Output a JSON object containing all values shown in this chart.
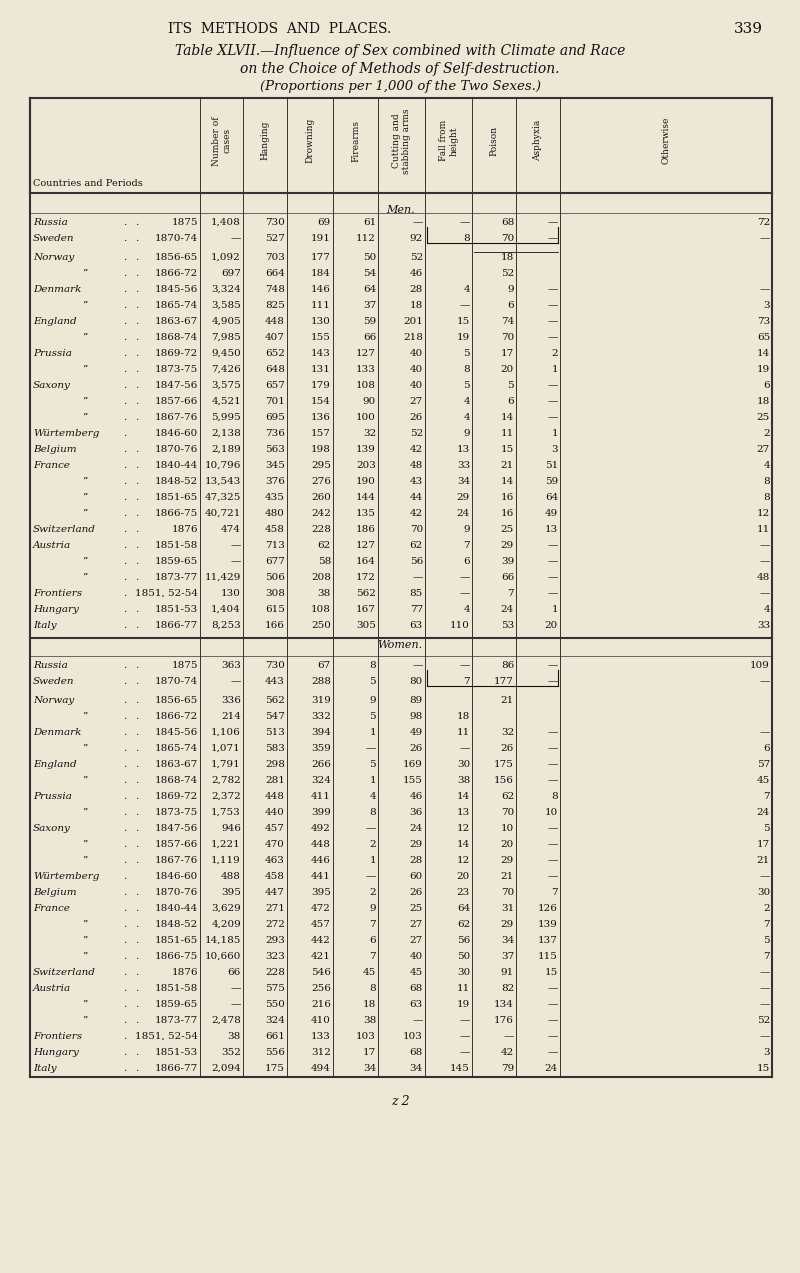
{
  "page_header": "ITS  METHODS  AND  PLACES.",
  "page_number": "339",
  "title_line1": "Table XLVII.—Influence of Sex combined with Climate and Race",
  "title_line2": "on the Choice of Methods of Self-destruction.",
  "title_line3": "(Proportions per 1,000 of the Two Sexes.)",
  "col_headers": [
    "Number of\ncases",
    "Hanging",
    "Drowning",
    "Firearms",
    "Cutting and\nstabbing arms",
    "Fall from\nheight",
    "Poison",
    "Asphyxia",
    "Otherwise"
  ],
  "men_label": "Men.",
  "women_label": "Women.",
  "men_rows": [
    [
      "Russia",
      ".",
      ".",
      "1875",
      "1,408",
      "730",
      "69",
      "61",
      "—",
      "—",
      "68",
      "—",
      "72"
    ],
    [
      "Sweden",
      ".",
      ".",
      "1870-74",
      "—",
      "527",
      "191",
      "112",
      "92",
      "8",
      "70",
      "—",
      "—"
    ],
    [
      "Norway",
      ".",
      ".",
      "1856-65",
      "1,092",
      "703",
      "177",
      "50",
      "52",
      "",
      "18",
      "",
      ""
    ],
    [
      "”",
      ".",
      ".",
      "1866-72",
      "697",
      "664",
      "184",
      "54",
      "46",
      "",
      "52",
      "",
      ""
    ],
    [
      "Denmark",
      ".",
      ".",
      "1845-56",
      "3,324",
      "748",
      "146",
      "64",
      "28",
      "4",
      "9",
      "—",
      "—"
    ],
    [
      "”",
      ".",
      ".",
      "1865-74",
      "3,585",
      "825",
      "111",
      "37",
      "18",
      "—",
      "6",
      "—",
      "3"
    ],
    [
      "England",
      ".",
      ".",
      "1863-67",
      "4,905",
      "448",
      "130",
      "59",
      "201",
      "15",
      "74",
      "—",
      "73"
    ],
    [
      "”",
      ".",
      ".",
      "1868-74",
      "7,985",
      "407",
      "155",
      "66",
      "218",
      "19",
      "70",
      "—",
      "65"
    ],
    [
      "Prussia",
      ".",
      ".",
      "1869-72",
      "9,450",
      "652",
      "143",
      "127",
      "40",
      "5",
      "17",
      "2",
      "14"
    ],
    [
      "”",
      ".",
      ".",
      "1873-75",
      "7,426",
      "648",
      "131",
      "133",
      "40",
      "8",
      "20",
      "1",
      "19"
    ],
    [
      "Saxony",
      ".",
      ".",
      "1847-56",
      "3,575",
      "657",
      "179",
      "108",
      "40",
      "5",
      "5",
      "—",
      "6"
    ],
    [
      "”",
      ".",
      ".",
      "1857-66",
      "4,521",
      "701",
      "154",
      "90",
      "27",
      "4",
      "6",
      "—",
      "18"
    ],
    [
      "”",
      ".",
      ".",
      "1867-76",
      "5,995",
      "695",
      "136",
      "100",
      "26",
      "4",
      "14",
      "—",
      "25"
    ],
    [
      "Würtemberg",
      ".",
      "1846-60",
      "2,138",
      "736",
      "157",
      "32",
      "52",
      "9",
      "11",
      "1",
      "2"
    ],
    [
      "Belgium",
      ".",
      ".",
      "1870-76",
      "2,189",
      "563",
      "198",
      "139",
      "42",
      "13",
      "15",
      "3",
      "27"
    ],
    [
      "France",
      ".",
      ".",
      "1840-44",
      "10,796",
      "345",
      "295",
      "203",
      "48",
      "33",
      "21",
      "51",
      "4"
    ],
    [
      "”",
      ".",
      ".",
      "1848-52",
      "13,543",
      "376",
      "276",
      "190",
      "43",
      "34",
      "14",
      "59",
      "8"
    ],
    [
      "”",
      ".",
      ".",
      "1851-65",
      "47,325",
      "435",
      "260",
      "144",
      "44",
      "29",
      "16",
      "64",
      "8"
    ],
    [
      "”",
      ".",
      ".",
      "1866-75",
      "40,721",
      "480",
      "242",
      "135",
      "42",
      "24",
      "16",
      "49",
      "12"
    ],
    [
      "Switzerland",
      ".",
      ".",
      "1876",
      "474",
      "458",
      "228",
      "186",
      "70",
      "9",
      "25",
      "13",
      "11"
    ],
    [
      "Austria",
      ".",
      ".",
      "1851-58",
      "—",
      "713",
      "62",
      "127",
      "62",
      "7",
      "29",
      "—",
      "—"
    ],
    [
      "”",
      ".",
      ".",
      "1859-65",
      "—",
      "677",
      "58",
      "164",
      "56",
      "6",
      "39",
      "—",
      "—"
    ],
    [
      "”",
      ".",
      ".",
      "1873-77",
      "11,429",
      "506",
      "208",
      "172",
      "—",
      "—",
      "66",
      "—",
      "48"
    ],
    [
      "Frontiers",
      ".",
      "1851, 52-54",
      "130",
      "308",
      "38",
      "562",
      "85",
      "—",
      "7",
      "—",
      "—"
    ],
    [
      "Hungary",
      ".",
      ".",
      "1851-53",
      "1,404",
      "615",
      "108",
      "167",
      "77",
      "4",
      "24",
      "1",
      "4"
    ],
    [
      "Italy",
      ".",
      ".",
      "1866-77",
      "8,253",
      "166",
      "250",
      "305",
      "63",
      "110",
      "53",
      "20",
      "33"
    ]
  ],
  "women_rows": [
    [
      "Russia",
      ".",
      ".",
      "1875",
      "363",
      "730",
      "67",
      "8",
      "—",
      "—",
      "86",
      "—",
      "109"
    ],
    [
      "Sweden",
      ".",
      ".",
      "1870-74",
      "—",
      "443",
      "288",
      "5",
      "80",
      "7",
      "177",
      "—",
      "—"
    ],
    [
      "Norway",
      ".",
      ".",
      "1856-65",
      "336",
      "562",
      "319",
      "9",
      "89",
      "",
      "21",
      "",
      ""
    ],
    [
      "”",
      ".",
      ".",
      "1866-72",
      "214",
      "547",
      "332",
      "5",
      "98",
      "18",
      "",
      "",
      ""
    ],
    [
      "Denmark",
      ".",
      ".",
      "1845-56",
      "1,106",
      "513",
      "394",
      "1",
      "49",
      "11",
      "32",
      "—",
      "—"
    ],
    [
      "”",
      ".",
      ".",
      "1865-74",
      "1,071",
      "583",
      "359",
      "—",
      "26",
      "—",
      "26",
      "—",
      "6"
    ],
    [
      "England",
      ".",
      ".",
      "1863-67",
      "1,791",
      "298",
      "266",
      "5",
      "169",
      "30",
      "175",
      "—",
      "57"
    ],
    [
      "”",
      ".",
      ".",
      "1868-74",
      "2,782",
      "281",
      "324",
      "1",
      "155",
      "38",
      "156",
      "—",
      "45"
    ],
    [
      "Prussia",
      ".",
      ".",
      "1869-72",
      "2,372",
      "448",
      "411",
      "4",
      "46",
      "14",
      "62",
      "8",
      "7"
    ],
    [
      "”",
      ".",
      ".",
      "1873-75",
      "1,753",
      "440",
      "399",
      "8",
      "36",
      "13",
      "70",
      "10",
      "24"
    ],
    [
      "Saxony",
      ".",
      ".",
      "1847-56",
      "946",
      "457",
      "492",
      "—",
      "24",
      "12",
      "10",
      "—",
      "5"
    ],
    [
      "”",
      ".",
      ".",
      "1857-66",
      "1,221",
      "470",
      "448",
      "2",
      "29",
      "14",
      "20",
      "—",
      "17"
    ],
    [
      "”",
      ".",
      ".",
      "1867-76",
      "1,119",
      "463",
      "446",
      "1",
      "28",
      "12",
      "29",
      "—",
      "21"
    ],
    [
      "Würtemberg",
      ".",
      "1846-60",
      "488",
      "458",
      "441",
      "—",
      "60",
      "20",
      "21",
      "—",
      "—"
    ],
    [
      "Belgium",
      ".",
      ".",
      "1870-76",
      "395",
      "447",
      "395",
      "2",
      "26",
      "23",
      "70",
      "7",
      "30"
    ],
    [
      "France",
      ".",
      ".",
      "1840-44",
      "3,629",
      "271",
      "472",
      "9",
      "25",
      "64",
      "31",
      "126",
      "2"
    ],
    [
      "”",
      ".",
      ".",
      "1848-52",
      "4,209",
      "272",
      "457",
      "7",
      "27",
      "62",
      "29",
      "139",
      "7"
    ],
    [
      "”",
      ".",
      ".",
      "1851-65",
      "14,185",
      "293",
      "442",
      "6",
      "27",
      "56",
      "34",
      "137",
      "5"
    ],
    [
      "”",
      ".",
      ".",
      "1866-75",
      "10,660",
      "323",
      "421",
      "7",
      "40",
      "50",
      "37",
      "115",
      "7"
    ],
    [
      "Switzerland",
      ".",
      ".",
      "1876",
      "66",
      "228",
      "546",
      "45",
      "45",
      "30",
      "91",
      "15",
      "—"
    ],
    [
      "Austria",
      ".",
      ".",
      "1851-58",
      "—",
      "575",
      "256",
      "8",
      "68",
      "11",
      "82",
      "—",
      "—"
    ],
    [
      "”",
      ".",
      ".",
      "1859-65",
      "—",
      "550",
      "216",
      "18",
      "63",
      "19",
      "134",
      "—",
      "—"
    ],
    [
      "”",
      ".",
      ".",
      "1873-77",
      "2,478",
      "324",
      "410",
      "38",
      "—",
      "—",
      "176",
      "—",
      "52"
    ],
    [
      "Frontiers",
      ".",
      "1851, 52-54",
      "38",
      "661",
      "133",
      "103",
      "103",
      "—",
      "—",
      "—",
      "—"
    ],
    [
      "Hungary",
      ".",
      ".",
      "1851-53",
      "352",
      "556",
      "312",
      "17",
      "68",
      "—",
      "42",
      "—",
      "3"
    ],
    [
      "Italy",
      ".",
      ".",
      "1866-77",
      "2,094",
      "175",
      "494",
      "34",
      "34",
      "145",
      "79",
      "24",
      "15"
    ]
  ],
  "bg_color": "#ede8d5",
  "text_color": "#111111",
  "footer": "z 2"
}
